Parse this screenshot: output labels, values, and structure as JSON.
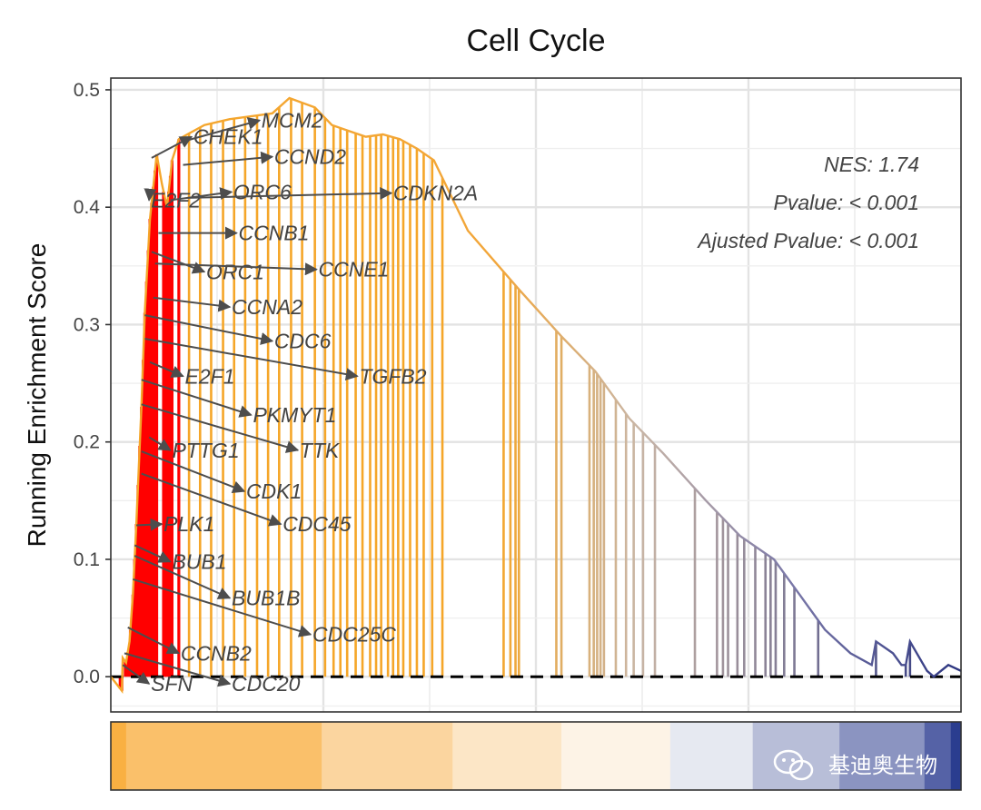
{
  "chart_data": {
    "type": "line",
    "title": "Cell Cycle",
    "ylabel": "Running Enrichment Score",
    "xlabel": "",
    "ylim": [
      -0.03,
      0.51
    ],
    "xlim": [
      0,
      1
    ],
    "yticks": [
      0.0,
      0.1,
      0.2,
      0.3,
      0.4,
      0.5
    ],
    "ytick_labels": [
      "0.0",
      "0.1",
      "0.2",
      "0.3",
      "0.4",
      "0.5"
    ],
    "grid": true,
    "baseline": 0.0,
    "stats": [
      {
        "key": "nes",
        "text": "NES: 1.74"
      },
      {
        "key": "pvalue",
        "text": "Pvalue: < 0.001"
      },
      {
        "key": "adj_pvalue",
        "text": "Ajusted Pvalue: < 0.001"
      }
    ],
    "running_score": [
      [
        0.0,
        0.0
      ],
      [
        0.013,
        -0.012
      ],
      [
        0.014,
        0.016
      ],
      [
        0.018,
        0.012
      ],
      [
        0.022,
        0.03
      ],
      [
        0.026,
        0.07
      ],
      [
        0.03,
        0.13
      ],
      [
        0.036,
        0.23
      ],
      [
        0.04,
        0.31
      ],
      [
        0.046,
        0.39
      ],
      [
        0.054,
        0.445
      ],
      [
        0.06,
        0.42
      ],
      [
        0.066,
        0.4
      ],
      [
        0.072,
        0.44
      ],
      [
        0.08,
        0.458
      ],
      [
        0.09,
        0.462
      ],
      [
        0.11,
        0.47
      ],
      [
        0.14,
        0.475
      ],
      [
        0.17,
        0.478
      ],
      [
        0.19,
        0.48
      ],
      [
        0.21,
        0.493
      ],
      [
        0.24,
        0.485
      ],
      [
        0.26,
        0.47
      ],
      [
        0.28,
        0.465
      ],
      [
        0.3,
        0.46
      ],
      [
        0.32,
        0.462
      ],
      [
        0.34,
        0.458
      ],
      [
        0.36,
        0.45
      ],
      [
        0.38,
        0.44
      ],
      [
        0.42,
        0.38
      ],
      [
        0.48,
        0.33
      ],
      [
        0.53,
        0.29
      ],
      [
        0.57,
        0.26
      ],
      [
        0.61,
        0.22
      ],
      [
        0.65,
        0.19
      ],
      [
        0.7,
        0.15
      ],
      [
        0.74,
        0.12
      ],
      [
        0.78,
        0.1
      ],
      [
        0.81,
        0.07
      ],
      [
        0.84,
        0.04
      ],
      [
        0.87,
        0.02
      ],
      [
        0.895,
        0.01
      ],
      [
        0.9,
        0.03
      ],
      [
        0.92,
        0.02
      ],
      [
        0.93,
        0.01
      ],
      [
        0.935,
        0.01
      ],
      [
        0.94,
        0.03
      ],
      [
        0.96,
        0.005
      ],
      [
        0.968,
        0.0
      ],
      [
        0.985,
        0.01
      ],
      [
        1.0,
        0.005
      ]
    ],
    "hits": [
      0.011,
      0.013,
      0.017,
      0.02,
      0.023,
      0.026,
      0.028,
      0.03,
      0.032,
      0.034,
      0.036,
      0.038,
      0.04,
      0.042,
      0.044,
      0.046,
      0.048,
      0.05,
      0.052,
      0.054,
      0.062,
      0.064,
      0.066,
      0.068,
      0.07,
      0.072,
      0.08,
      0.092,
      0.105,
      0.118,
      0.132,
      0.145,
      0.158,
      0.172,
      0.185,
      0.198,
      0.212,
      0.225,
      0.24,
      0.252,
      0.262,
      0.27,
      0.278,
      0.288,
      0.296,
      0.305,
      0.312,
      0.318,
      0.326,
      0.332,
      0.338,
      0.344,
      0.352,
      0.36,
      0.368,
      0.378,
      0.39,
      0.462,
      0.47,
      0.476,
      0.48,
      0.524,
      0.53,
      0.563,
      0.568,
      0.572,
      0.576,
      0.58,
      0.594,
      0.606,
      0.615,
      0.626,
      0.64,
      0.687,
      0.713,
      0.72,
      0.726,
      0.737,
      0.745,
      0.758,
      0.77,
      0.776,
      0.782,
      0.792,
      0.804,
      0.832,
      0.9,
      0.935,
      0.94,
      0.968
    ],
    "red_hit_cutoff": 0.09,
    "genes": [
      "CHEK1",
      "MCM2",
      "CCND2",
      "E2F2",
      "ORC6",
      "CDKN2A",
      "CCNB1",
      "ORC1",
      "CCNE1",
      "CCNA2",
      "CDC6",
      "TGFB2",
      "E2F1",
      "PKMYT1",
      "TTK",
      "PTTG1",
      "CDK1",
      "CDC45",
      "PLK1",
      "BUB1",
      "BUB1B",
      "CDC25C",
      "CCNB2",
      "SFN",
      "CDC20"
    ],
    "gene_labels": [
      {
        "gene": "CHEK1",
        "label_x": 0.095,
        "label_y": 0.46,
        "hit_x": 0.048,
        "hit_y": 0.442
      },
      {
        "gene": "MCM2",
        "label_x": 0.175,
        "label_y": 0.474,
        "hit_x": 0.09,
        "hit_y": 0.457
      },
      {
        "gene": "CCND2",
        "label_x": 0.19,
        "label_y": 0.443,
        "hit_x": 0.085,
        "hit_y": 0.436
      },
      {
        "gene": "E2F2",
        "label_x": 0.045,
        "label_y": 0.406,
        "hit_x": 0.046,
        "hit_y": 0.413
      },
      {
        "gene": "ORC6",
        "label_x": 0.142,
        "label_y": 0.413,
        "hit_x": 0.07,
        "hit_y": 0.406
      },
      {
        "gene": "CDKN2A",
        "label_x": 0.33,
        "label_y": 0.412,
        "hit_x": 0.09,
        "hit_y": 0.408
      },
      {
        "gene": "CCNB1",
        "label_x": 0.148,
        "label_y": 0.378,
        "hit_x": 0.056,
        "hit_y": 0.378
      },
      {
        "gene": "ORC1",
        "label_x": 0.11,
        "label_y": 0.345,
        "hit_x": 0.048,
        "hit_y": 0.362
      },
      {
        "gene": "CCNE1",
        "label_x": 0.242,
        "label_y": 0.347,
        "hit_x": 0.052,
        "hit_y": 0.352
      },
      {
        "gene": "CCNA2",
        "label_x": 0.14,
        "label_y": 0.315,
        "hit_x": 0.05,
        "hit_y": 0.323
      },
      {
        "gene": "CDC6",
        "label_x": 0.19,
        "label_y": 0.286,
        "hit_x": 0.04,
        "hit_y": 0.308
      },
      {
        "gene": "TGFB2",
        "label_x": 0.29,
        "label_y": 0.256,
        "hit_x": 0.04,
        "hit_y": 0.288
      },
      {
        "gene": "E2F1",
        "label_x": 0.085,
        "label_y": 0.256,
        "hit_x": 0.046,
        "hit_y": 0.268
      },
      {
        "gene": "PKMYT1",
        "label_x": 0.165,
        "label_y": 0.223,
        "hit_x": 0.036,
        "hit_y": 0.253
      },
      {
        "gene": "TTK",
        "label_x": 0.22,
        "label_y": 0.193,
        "hit_x": 0.036,
        "hit_y": 0.232
      },
      {
        "gene": "PTTG1",
        "label_x": 0.07,
        "label_y": 0.193,
        "hit_x": 0.045,
        "hit_y": 0.204
      },
      {
        "gene": "CDK1",
        "label_x": 0.157,
        "label_y": 0.158,
        "hit_x": 0.036,
        "hit_y": 0.192
      },
      {
        "gene": "CDC45",
        "label_x": 0.2,
        "label_y": 0.13,
        "hit_x": 0.036,
        "hit_y": 0.173
      },
      {
        "gene": "PLK1",
        "label_x": 0.06,
        "label_y": 0.13,
        "hit_x": 0.03,
        "hit_y": 0.129
      },
      {
        "gene": "BUB1",
        "label_x": 0.07,
        "label_y": 0.098,
        "hit_x": 0.028,
        "hit_y": 0.112
      },
      {
        "gene": "BUB1B",
        "label_x": 0.14,
        "label_y": 0.067,
        "hit_x": 0.028,
        "hit_y": 0.103
      },
      {
        "gene": "CDC25C",
        "label_x": 0.235,
        "label_y": 0.036,
        "hit_x": 0.026,
        "hit_y": 0.083
      },
      {
        "gene": "CCNB2",
        "label_x": 0.08,
        "label_y": 0.02,
        "hit_x": 0.02,
        "hit_y": 0.042
      },
      {
        "gene": "SFN",
        "label_x": 0.045,
        "label_y": -0.006,
        "hit_x": 0.014,
        "hit_y": 0.01
      },
      {
        "gene": "CDC20",
        "label_x": 0.14,
        "label_y": -0.006,
        "hit_x": 0.016,
        "hit_y": 0.02
      }
    ],
    "rank_heatmap": [
      {
        "x0": 0.0,
        "x1": 0.018,
        "color": "#f9b042"
      },
      {
        "x0": 0.018,
        "x1": 0.248,
        "color": "#fac06a"
      },
      {
        "x0": 0.248,
        "x1": 0.402,
        "color": "#fbd59f"
      },
      {
        "x0": 0.402,
        "x1": 0.53,
        "color": "#fce6c6"
      },
      {
        "x0": 0.53,
        "x1": 0.658,
        "color": "#fdf3e6"
      },
      {
        "x0": 0.658,
        "x1": 0.755,
        "color": "#e6e9f1"
      },
      {
        "x0": 0.755,
        "x1": 0.857,
        "color": "#b8bed8"
      },
      {
        "x0": 0.857,
        "x1": 0.957,
        "color": "#8b94c1"
      },
      {
        "x0": 0.957,
        "x1": 0.988,
        "color": "#5562a6"
      },
      {
        "x0": 0.988,
        "x1": 1.0,
        "color": "#2a3d8f"
      }
    ],
    "colors": {
      "hit_red": "#ff0000",
      "gradient_start": "#f5a629",
      "gradient_mid": "#c9b6a6",
      "gradient_end": "#2c3580",
      "baseline": "#000000",
      "label_arrow": "#4d4d4d"
    }
  },
  "watermark": {
    "text": "基迪奥生物",
    "icon": "wechat-icon"
  }
}
